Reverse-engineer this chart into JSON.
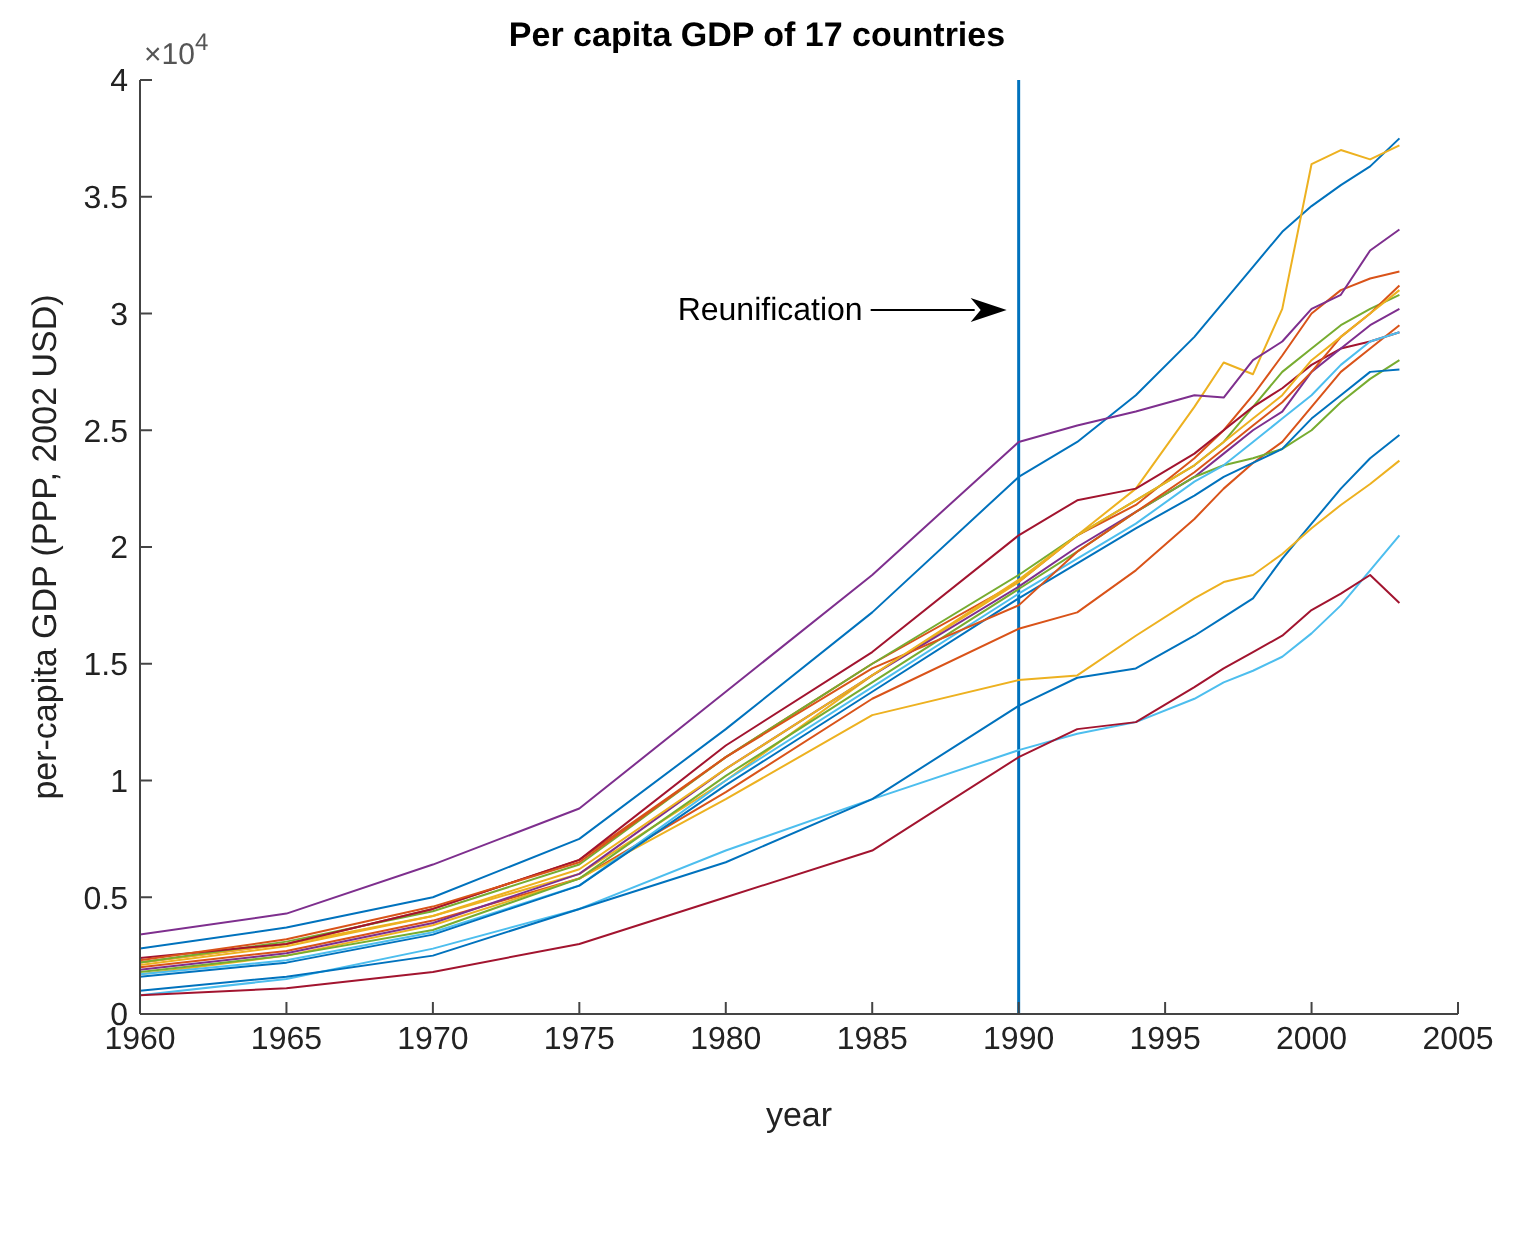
{
  "chart_data": {
    "type": "line",
    "title": "Per capita GDP of 17 countries",
    "xlabel": "year",
    "ylabel": "per-capita GDP (PPP, 2002 USD)",
    "x": [
      1960,
      1965,
      1970,
      1975,
      1980,
      1985,
      1990,
      1992,
      1994,
      1996,
      1997,
      1998,
      1999,
      2000,
      2001,
      2002,
      2003
    ],
    "series": [
      {
        "color": "#0072bd",
        "values": [
          0.28,
          0.37,
          0.5,
          0.75,
          1.22,
          1.72,
          2.3,
          2.45,
          2.65,
          2.9,
          3.05,
          3.2,
          3.35,
          3.46,
          3.55,
          3.63,
          3.75
        ]
      },
      {
        "color": "#d95319",
        "values": [
          0.22,
          0.3,
          0.45,
          0.66,
          1.1,
          1.5,
          1.85,
          2.05,
          2.18,
          2.38,
          2.5,
          2.65,
          2.82,
          3.0,
          3.1,
          3.15,
          3.18
        ]
      },
      {
        "color": "#edb120",
        "values": [
          0.22,
          0.3,
          0.42,
          0.6,
          1.0,
          1.45,
          1.85,
          2.05,
          2.25,
          2.6,
          2.79,
          2.74,
          3.02,
          3.64,
          3.7,
          3.66,
          3.72
        ]
      },
      {
        "color": "#7e2f8e",
        "values": [
          0.34,
          0.43,
          0.64,
          0.88,
          1.38,
          1.88,
          2.45,
          2.52,
          2.58,
          2.65,
          2.64,
          2.8,
          2.88,
          3.02,
          3.08,
          3.27,
          3.36
        ]
      },
      {
        "color": "#77ac30",
        "values": [
          0.22,
          0.31,
          0.44,
          0.64,
          1.1,
          1.5,
          1.88,
          2.05,
          2.2,
          2.35,
          2.45,
          2.6,
          2.75,
          2.85,
          2.95,
          3.02,
          3.08
        ]
      },
      {
        "color": "#4dbeee",
        "values": [
          0.08,
          0.15,
          0.28,
          0.45,
          0.7,
          0.92,
          1.13,
          1.2,
          1.25,
          1.35,
          1.42,
          1.47,
          1.53,
          1.63,
          1.75,
          1.9,
          2.05
        ]
      },
      {
        "color": "#a2142f",
        "values": [
          0.24,
          0.3,
          0.45,
          0.66,
          1.15,
          1.55,
          2.05,
          2.2,
          2.25,
          2.4,
          2.5,
          2.6,
          2.68,
          2.78,
          2.85,
          2.88,
          2.92
        ]
      },
      {
        "color": "#0072bd",
        "values": [
          0.1,
          0.16,
          0.25,
          0.45,
          0.65,
          0.92,
          1.32,
          1.44,
          1.48,
          1.62,
          1.7,
          1.78,
          1.95,
          2.1,
          2.25,
          2.38,
          2.48
        ]
      },
      {
        "color": "#d95319",
        "values": [
          0.2,
          0.27,
          0.4,
          0.58,
          0.95,
          1.35,
          1.65,
          1.72,
          1.9,
          2.12,
          2.25,
          2.36,
          2.45,
          2.6,
          2.75,
          2.85,
          2.95
        ]
      },
      {
        "color": "#edb120",
        "values": [
          0.17,
          0.25,
          0.38,
          0.58,
          0.92,
          1.28,
          1.43,
          1.45,
          1.62,
          1.78,
          1.85,
          1.88,
          1.97,
          2.08,
          2.18,
          2.27,
          2.37
        ]
      },
      {
        "color": "#7e2f8e",
        "values": [
          0.19,
          0.26,
          0.39,
          0.6,
          1.05,
          1.45,
          1.83,
          2.0,
          2.15,
          2.3,
          2.4,
          2.5,
          2.58,
          2.75,
          2.85,
          2.95,
          3.02
        ]
      },
      {
        "color": "#77ac30",
        "values": [
          0.18,
          0.25,
          0.36,
          0.58,
          1.02,
          1.42,
          1.82,
          1.98,
          2.15,
          2.3,
          2.35,
          2.38,
          2.42,
          2.5,
          2.62,
          2.72,
          2.8
        ]
      },
      {
        "color": "#4dbeee",
        "values": [
          0.17,
          0.23,
          0.35,
          0.55,
          1.0,
          1.4,
          1.8,
          1.95,
          2.1,
          2.28,
          2.35,
          2.45,
          2.55,
          2.65,
          2.78,
          2.88,
          2.92
        ]
      },
      {
        "color": "#a2142f",
        "values": [
          0.08,
          0.11,
          0.18,
          0.3,
          0.5,
          0.7,
          1.1,
          1.22,
          1.25,
          1.4,
          1.48,
          1.55,
          1.62,
          1.73,
          1.8,
          1.88,
          1.76
        ]
      },
      {
        "color": "#0072bd",
        "values": [
          0.16,
          0.22,
          0.34,
          0.55,
          0.98,
          1.38,
          1.78,
          1.93,
          2.08,
          2.22,
          2.3,
          2.36,
          2.42,
          2.55,
          2.65,
          2.75,
          2.76
        ]
      },
      {
        "color": "#d95319",
        "values": [
          0.23,
          0.32,
          0.46,
          0.65,
          1.1,
          1.48,
          1.75,
          1.98,
          2.15,
          2.32,
          2.42,
          2.52,
          2.62,
          2.75,
          2.9,
          3.0,
          3.12
        ]
      },
      {
        "color": "#edb120",
        "values": [
          0.21,
          0.29,
          0.42,
          0.62,
          1.05,
          1.45,
          1.86,
          2.05,
          2.2,
          2.35,
          2.45,
          2.55,
          2.65,
          2.8,
          2.9,
          3.0,
          3.1
        ]
      }
    ],
    "xlim": [
      1960,
      2005
    ],
    "xticks": [
      1960,
      1965,
      1970,
      1975,
      1980,
      1985,
      1990,
      1995,
      2000,
      2005
    ],
    "ylim": [
      0,
      4
    ],
    "yticks": [
      0,
      0.5,
      1,
      1.5,
      2,
      2.5,
      3,
      3.5,
      4
    ],
    "ref_lines": [
      {
        "axis": "x",
        "value": 1990,
        "color": "#0072bd"
      }
    ],
    "annotations": [
      "×10$^{4}$",
      "Reunification"
    ],
    "grid": false,
    "marker": "none",
    "line_style": "solid"
  }
}
